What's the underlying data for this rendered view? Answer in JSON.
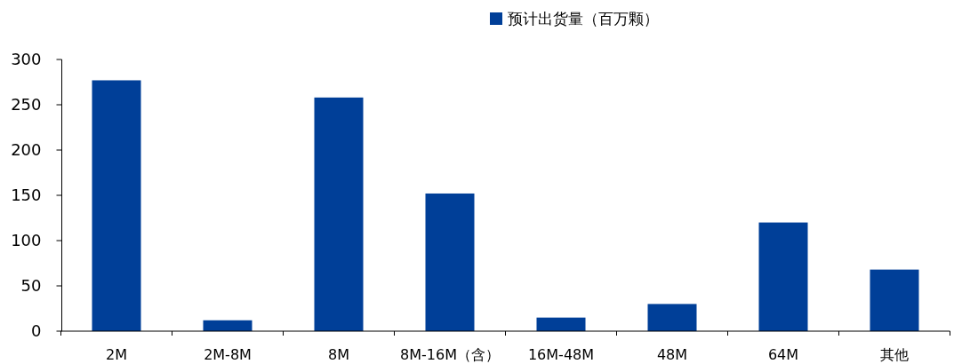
{
  "chart_data": {
    "type": "bar",
    "categories": [
      "2M",
      "2M-8M",
      "8M",
      "8M-16M（含）",
      "16M-48M",
      "48M",
      "64M",
      "其他"
    ],
    "series": [
      {
        "name": "预计出货量（百万颗）",
        "color": "#003f98",
        "values": [
          277,
          12,
          258,
          152,
          15,
          30,
          120,
          68
        ]
      }
    ],
    "ylim": [
      0,
      300
    ],
    "yticks": [
      0,
      50,
      100,
      150,
      200,
      250,
      300
    ],
    "legend": "top",
    "grid": false
  }
}
